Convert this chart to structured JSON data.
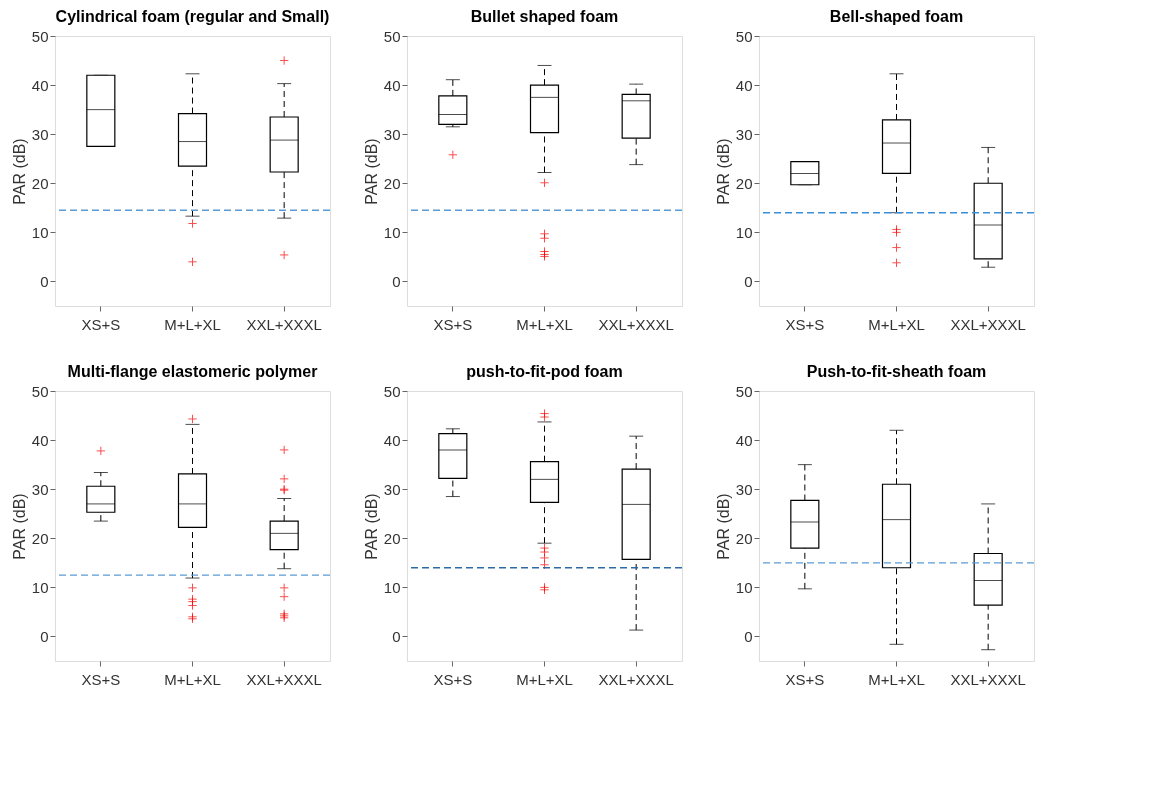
{
  "chart_data": [
    {
      "type": "box",
      "title": "Cylindrical foam (regular and Small)",
      "ylabel": "PAR (dB)",
      "categories": [
        "XS+S",
        "M+L+XL",
        "XXL+XXXL"
      ],
      "ylim": [
        -5,
        50
      ],
      "yticks": [
        0,
        10,
        20,
        30,
        40,
        50
      ],
      "grid": false,
      "marker": "cross",
      "series": [
        {
          "color": "#000000",
          "boxes": [
            {
              "low": 27.5,
              "q1": 27.5,
              "median": 35,
              "q3": 42,
              "high": 42
            },
            {
              "low": 13.3,
              "q1": 23.5,
              "median": 28.5,
              "q3": 34.2,
              "high": 42.3,
              "outliers": [
                11.8,
                4
              ]
            },
            {
              "low": 12.9,
              "q1": 22.3,
              "median": 28.8,
              "q3": 33.5,
              "high": 40.3,
              "outliers": [
                45,
                5.4
              ]
            }
          ]
        }
      ],
      "ref_lines": [
        {
          "axis": "y",
          "value": 14.5,
          "color": "#5b9bd5",
          "line_style": "dashed"
        }
      ]
    },
    {
      "type": "box",
      "title": "Bullet shaped foam",
      "ylabel": "PAR (dB)",
      "categories": [
        "XS+S",
        "M+L+XL",
        "XXL+XXXL"
      ],
      "ylim": [
        -5,
        50
      ],
      "yticks": [
        0,
        10,
        20,
        30,
        40,
        50
      ],
      "grid": false,
      "marker": "cross",
      "series": [
        {
          "color": "#000000",
          "boxes": [
            {
              "low": 31.5,
              "q1": 32,
              "median": 34,
              "q3": 37.8,
              "high": 41.1,
              "outliers": [
                25.8
              ]
            },
            {
              "low": 22.2,
              "q1": 30.3,
              "median": 37.5,
              "q3": 40,
              "high": 44,
              "outliers": [
                20.1,
                9.7,
                8.8,
                6.1,
                5.5,
                5.1
              ]
            },
            {
              "low": 23.8,
              "q1": 29.2,
              "median": 36.8,
              "q3": 38.1,
              "high": 40.2
            }
          ]
        }
      ],
      "ref_lines": [
        {
          "axis": "y",
          "value": 14.5,
          "color": "#5b9bd5",
          "line_style": "dashed"
        }
      ]
    },
    {
      "type": "box",
      "title": "Bell-shaped foam",
      "ylabel": "PAR (dB)",
      "categories": [
        "XS+S",
        "M+L+XL",
        "XXL+XXXL"
      ],
      "ylim": [
        -5,
        50
      ],
      "yticks": [
        0,
        10,
        20,
        30,
        40,
        50
      ],
      "grid": false,
      "marker": "cross",
      "series": [
        {
          "color": "#000000",
          "boxes": [
            {
              "low": 19.7,
              "q1": 19.7,
              "median": 22,
              "q3": 24.4,
              "high": 24.4
            },
            {
              "low": 14,
              "q1": 22,
              "median": 28.2,
              "q3": 32.9,
              "high": 42.3,
              "outliers": [
                10.6,
                10,
                6.9,
                3.8
              ]
            },
            {
              "low": 2.9,
              "q1": 4.6,
              "median": 11.5,
              "q3": 20,
              "high": 27.3
            }
          ]
        }
      ],
      "ref_lines": [
        {
          "axis": "y",
          "value": 14,
          "color": "#3a8fd9",
          "line_style": "dashed"
        }
      ]
    },
    {
      "type": "box",
      "title": "Multi-flange elastomeric polymer",
      "ylabel": "PAR (dB)",
      "categories": [
        "XS+S",
        "M+L+XL",
        "XXL+XXXL"
      ],
      "ylim": [
        -5,
        50
      ],
      "yticks": [
        0,
        10,
        20,
        30,
        40,
        50
      ],
      "grid": false,
      "marker": "cross",
      "series": [
        {
          "color": "#000000",
          "boxes": [
            {
              "low": 23.5,
              "q1": 25.3,
              "median": 27,
              "q3": 30.6,
              "high": 33.4,
              "outliers": [
                37.8
              ]
            },
            {
              "low": 11.9,
              "q1": 22.2,
              "median": 27,
              "q3": 33.1,
              "high": 43.2,
              "outliers": [
                44.3,
                9.9,
                7.6,
                7.1,
                6.3,
                4,
                3.6
              ]
            },
            {
              "low": 13.8,
              "q1": 17.7,
              "median": 21,
              "q3": 23.5,
              "high": 28.1,
              "outliers": [
                38,
                32.1,
                30,
                29.8,
                9.9,
                8.1,
                4.6,
                4.2,
                3.8
              ]
            }
          ]
        }
      ],
      "ref_lines": [
        {
          "axis": "y",
          "value": 12.5,
          "color": "#5b9bd5",
          "line_style": "dashed"
        }
      ]
    },
    {
      "type": "box",
      "title": "push-to-fit-pod foam",
      "ylabel": "PAR (dB)",
      "categories": [
        "XS+S",
        "M+L+XL",
        "XXL+XXXL"
      ],
      "ylim": [
        -5,
        50
      ],
      "yticks": [
        0,
        10,
        20,
        30,
        40,
        50
      ],
      "grid": false,
      "marker": "cross",
      "series": [
        {
          "color": "#000000",
          "boxes": [
            {
              "low": 28.5,
              "q1": 32.2,
              "median": 38,
              "q3": 41.3,
              "high": 42.3
            },
            {
              "low": 19,
              "q1": 27.3,
              "median": 32,
              "q3": 35.6,
              "high": 43.7,
              "outliers": [
                45.4,
                44.7,
                18,
                17.2,
                16,
                14.6,
                10,
                9.5
              ]
            },
            {
              "low": 1.3,
              "q1": 15.7,
              "median": 26.9,
              "q3": 34.1,
              "high": 40.8
            }
          ]
        }
      ],
      "ref_lines": [
        {
          "axis": "y",
          "value": 14,
          "color": "#2e6aa6",
          "line_style": "dashed"
        }
      ]
    },
    {
      "type": "box",
      "title": "Push-to-fit-sheath foam",
      "ylabel": "PAR (dB)",
      "categories": [
        "XS+S",
        "M+L+XL",
        "XXL+XXXL"
      ],
      "ylim": [
        -5,
        50
      ],
      "yticks": [
        0,
        10,
        20,
        30,
        40,
        50
      ],
      "grid": false,
      "marker": "cross",
      "series": [
        {
          "color": "#000000",
          "boxes": [
            {
              "low": 9.7,
              "q1": 18,
              "median": 23.3,
              "q3": 27.7,
              "high": 35
            },
            {
              "low": -1.6,
              "q1": 14,
              "median": 23.8,
              "q3": 31,
              "high": 42
            },
            {
              "low": -2.7,
              "q1": 6.4,
              "median": 11.4,
              "q3": 16.9,
              "high": 27
            }
          ]
        }
      ],
      "ref_lines": [
        {
          "axis": "y",
          "value": 15,
          "color": "#5b9bd5",
          "line_style": "dashed"
        }
      ]
    }
  ]
}
